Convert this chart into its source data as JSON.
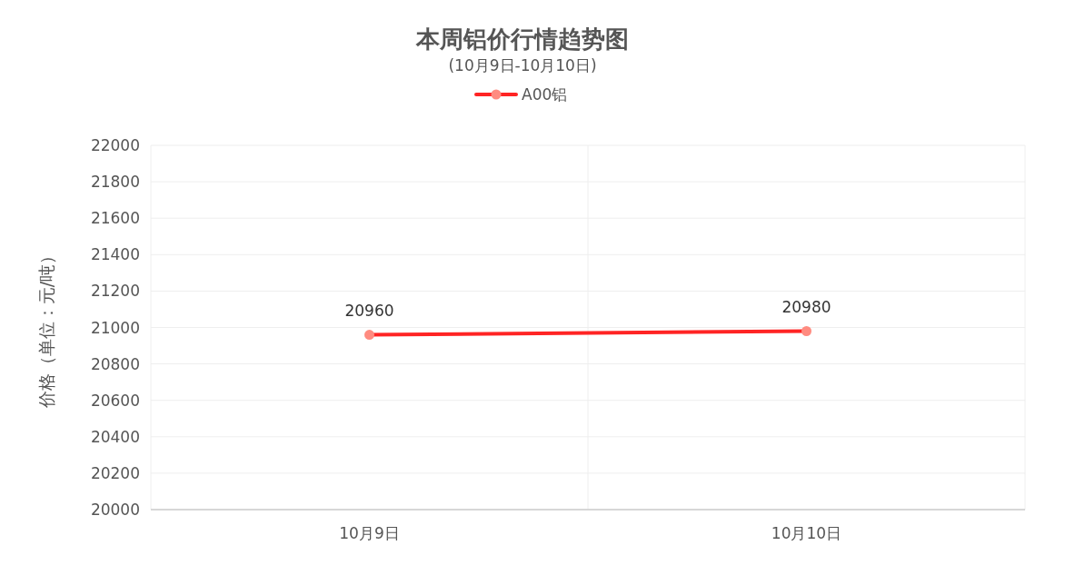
{
  "chart_data": {
    "type": "line",
    "title": "本周铝价行情趋势图",
    "subtitle": "(10月9日-10月10日)",
    "ylabel": "价格（单位：元/吨）",
    "categories": [
      "10月9日",
      "10月10日"
    ],
    "series": [
      {
        "name": "A00铝",
        "color": "#ff2424",
        "values": [
          20960,
          20980
        ]
      }
    ],
    "ylim": [
      20000,
      22000
    ],
    "yticks": [
      20000,
      20200,
      20400,
      20600,
      20800,
      21000,
      21200,
      21400,
      21600,
      21800,
      22000
    ],
    "grid": true,
    "legend": "top",
    "marker": "circle",
    "data_labels": true
  }
}
